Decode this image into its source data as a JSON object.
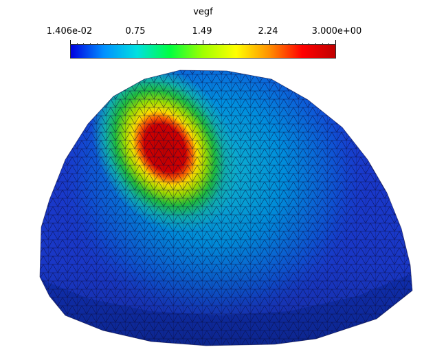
{
  "scalar_bar": {
    "title": "vegf",
    "labels": [
      "1.406e-02",
      "0.75",
      "1.49",
      "2.24",
      "3.000e+00"
    ],
    "range": [
      0.01406,
      3.0
    ],
    "colormap": "rainbow",
    "colors": [
      "#0000e0",
      "#0090ff",
      "#00e0e0",
      "#00ff40",
      "#a0ff00",
      "#ffff00",
      "#ff9000",
      "#ff0000",
      "#c00000"
    ]
  },
  "mesh": {
    "edge_color": "#0a0a3a",
    "base_color": "#1a3ad0"
  }
}
